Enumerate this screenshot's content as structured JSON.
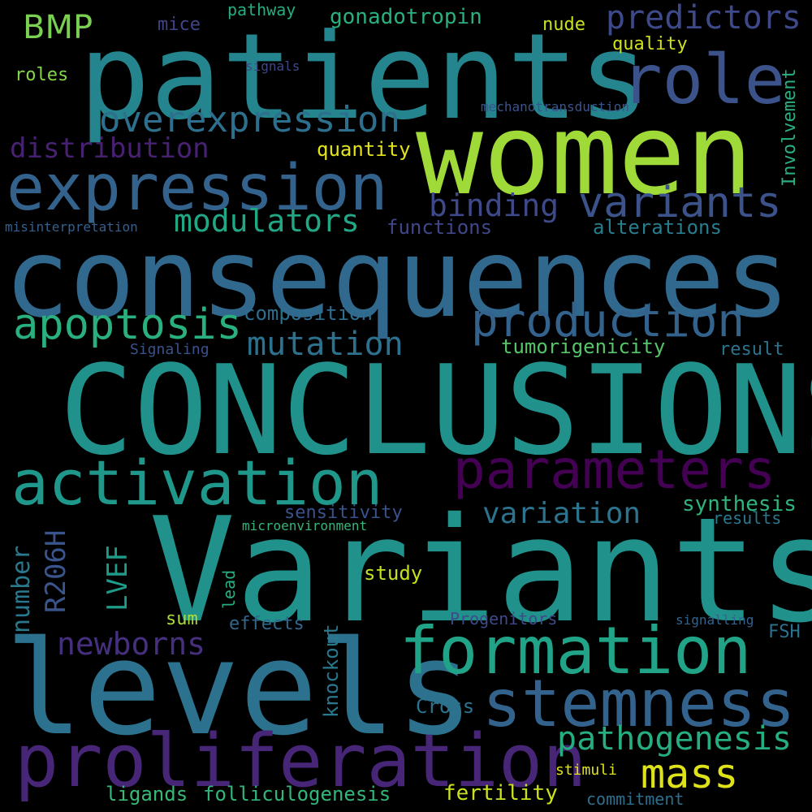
{
  "words": [
    {
      "text": "patients",
      "color": "#25858e"
    },
    {
      "text": "women",
      "color": "#a0da39"
    },
    {
      "text": "consequences",
      "color": "#31688e"
    },
    {
      "text": "CONCLUSIONS",
      "color": "#21918c"
    },
    {
      "text": "Variants",
      "color": "#21918c"
    },
    {
      "text": "levels",
      "color": "#2c728e"
    },
    {
      "text": "proliferation",
      "color": "#482677"
    },
    {
      "text": "formation",
      "color": "#20a386"
    },
    {
      "text": "stemness",
      "color": "#33638d"
    },
    {
      "text": "expression",
      "color": "#33638d"
    },
    {
      "text": "activation",
      "color": "#1f988b"
    },
    {
      "text": "parameters",
      "color": "#440154"
    },
    {
      "text": "role",
      "color": "#3b528b"
    },
    {
      "text": "production",
      "color": "#33638d"
    },
    {
      "text": "variants",
      "color": "#3b528b"
    },
    {
      "text": "apoptosis",
      "color": "#2ab07f"
    },
    {
      "text": "predictors",
      "color": "#3e4989"
    },
    {
      "text": "overexpression",
      "color": "#2d708e"
    },
    {
      "text": "mass",
      "color": "#dde318"
    },
    {
      "text": "pathogenesis",
      "color": "#26ad81"
    },
    {
      "text": "modulators",
      "color": "#22a785"
    },
    {
      "text": "mutation",
      "color": "#2c728e"
    },
    {
      "text": "distribution",
      "color": "#482173"
    },
    {
      "text": "newborns",
      "color": "#46307e"
    },
    {
      "text": "variation",
      "color": "#2c738e"
    },
    {
      "text": "binding",
      "color": "#3e4989"
    },
    {
      "text": "BMP",
      "color": "#7ad151"
    },
    {
      "text": "R206H",
      "color": "#3a548c"
    },
    {
      "text": "number",
      "color": "#2a788e"
    },
    {
      "text": "LVEF",
      "color": "#1e9c89"
    },
    {
      "text": "gonadotropin",
      "color": "#2ab07f"
    },
    {
      "text": "quantity",
      "color": "#e2e418"
    },
    {
      "text": "functions",
      "color": "#3f4788"
    },
    {
      "text": "alterations",
      "color": "#287d8e"
    },
    {
      "text": "composition",
      "color": "#2e6e8e"
    },
    {
      "text": "tumorigenicity",
      "color": "#54c568"
    },
    {
      "text": "synthesis",
      "color": "#2fb47c"
    },
    {
      "text": "sensitivity",
      "color": "#3b528b"
    },
    {
      "text": "study",
      "color": "#c5e021"
    },
    {
      "text": "fertility",
      "color": "#cae11f"
    },
    {
      "text": "folliculogenesis",
      "color": "#32b67a"
    },
    {
      "text": "ligands",
      "color": "#38b977"
    },
    {
      "text": "knockout",
      "color": "#2a788e"
    },
    {
      "text": "Involvement",
      "color": "#2ab07f"
    },
    {
      "text": "effects",
      "color": "#31688e"
    },
    {
      "text": "Cross",
      "color": "#2c738e"
    },
    {
      "text": "quality",
      "color": "#d0e11c"
    },
    {
      "text": "nude",
      "color": "#c8e020"
    },
    {
      "text": "mice",
      "color": "#414487"
    },
    {
      "text": "pathway",
      "color": "#26ad81"
    },
    {
      "text": "roles",
      "color": "#86d549"
    },
    {
      "text": "result",
      "color": "#2c738e"
    },
    {
      "text": "results",
      "color": "#2a788e"
    },
    {
      "text": "sum",
      "color": "#a8db34"
    },
    {
      "text": "FSH",
      "color": "#2c728e"
    },
    {
      "text": "lead",
      "color": "#29af7f"
    },
    {
      "text": "Progenitors",
      "color": "#3e4a89"
    },
    {
      "text": "commitment",
      "color": "#2d708e"
    },
    {
      "text": "stimuli",
      "color": "#dfe318"
    },
    {
      "text": "signalling",
      "color": "#33638d"
    },
    {
      "text": "microenvironment",
      "color": "#34b679"
    },
    {
      "text": "Signaling",
      "color": "#3b528b"
    },
    {
      "text": "misinterpretation",
      "color": "#355f8d"
    },
    {
      "text": "mechanotransduction",
      "color": "#3b528b"
    },
    {
      "text": "signals",
      "color": "#3f4788"
    }
  ]
}
